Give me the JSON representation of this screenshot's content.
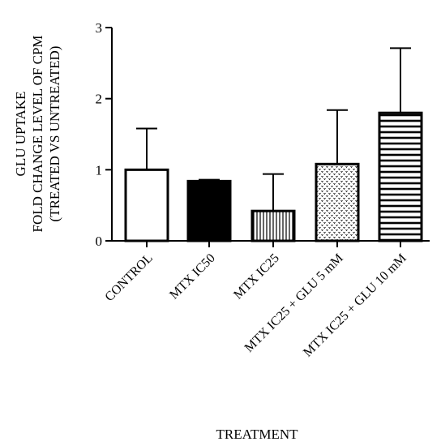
{
  "chart_data": {
    "type": "bar",
    "title": "",
    "xlabel": "TREATMENT",
    "ylabel_lines": [
      "GLU UPTAKE",
      "FOLD CHANGE LEVEL OF CPM",
      "(TREATED VS UNTREATED)"
    ],
    "ylim": [
      0,
      3
    ],
    "yticks": [
      "0",
      "1",
      "2",
      "3"
    ],
    "grid": false,
    "categories": [
      "CONTROL",
      "MTX IC50",
      "MTX IC25",
      "MTX IC25 + GLU 5 mM",
      "MTX IC25 + GLU 10 mM"
    ],
    "values": [
      1.0,
      0.84,
      0.42,
      1.08,
      1.8
    ],
    "error_upper": [
      0.58,
      0.02,
      0.52,
      0.76,
      0.91
    ],
    "patterns": [
      "empty",
      "solid",
      "vertical-lines",
      "dots",
      "horizontal-lines"
    ]
  }
}
